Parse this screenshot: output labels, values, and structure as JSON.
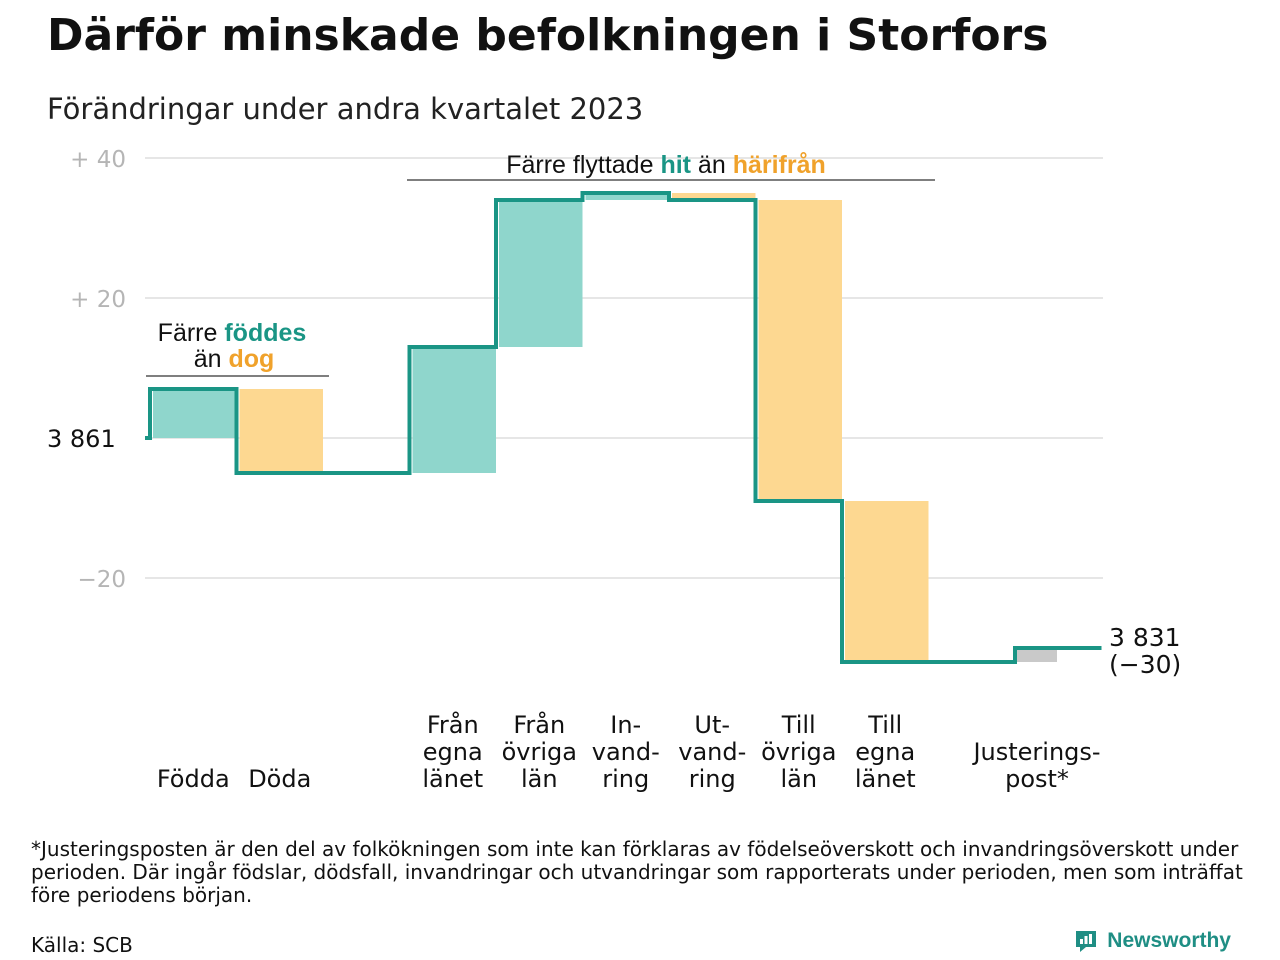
{
  "title": "Därför minskade befolkningen i Storfors",
  "subtitle": "Förändringar under andra kvartalet 2023",
  "footnote": "*Justeringsposten är den del av folkökningen som inte kan förklaras av födelseöverskott och invandringsöverskott under perioden. Där ingår födslar, dödsfall, invandringar och utvandringar som rapporterats under perioden, men som inträffat före periodens början.",
  "source": "Källa: SCB",
  "brand": "Newsworthy",
  "colors": {
    "positive": "#8fd6cc",
    "negative": "#fdd891",
    "adjustment": "#c9c9c9",
    "line": "#1a9585",
    "accent_teal": "#1a9585",
    "accent_orange": "#f0a22b",
    "grid": "#e6e6e6"
  },
  "chart_data": {
    "type": "waterfall",
    "start_value": 3861,
    "start_label": "3  861",
    "end_value": 3831,
    "end_label": "3 831",
    "change_label": "(−30)",
    "ylim": [
      -32,
      40
    ],
    "y_ticks": [
      {
        "value": 40,
        "label": "+  40"
      },
      {
        "value": 20,
        "label": "+  20"
      },
      {
        "value": 0,
        "label": ""
      },
      {
        "value": -20,
        "label": "−20"
      }
    ],
    "steps": [
      {
        "category": [
          "Födda"
        ],
        "value": 7,
        "kind": "positive"
      },
      {
        "category": [
          "Döda"
        ],
        "value": -12,
        "kind": "negative"
      },
      {
        "category": [
          "Från",
          "egna",
          "länet"
        ],
        "value": 18,
        "kind": "positive"
      },
      {
        "category": [
          "Från",
          "övriga",
          "län"
        ],
        "value": 21,
        "kind": "positive"
      },
      {
        "category": [
          "In-",
          "vand-",
          "ring"
        ],
        "value": 1,
        "kind": "positive"
      },
      {
        "category": [
          "Ut-",
          "vand-",
          "ring"
        ],
        "value": -1,
        "kind": "negative"
      },
      {
        "category": [
          "Till",
          "övriga",
          "län"
        ],
        "value": -43,
        "kind": "negative"
      },
      {
        "category": [
          "Till",
          "egna",
          "länet"
        ],
        "value": -23,
        "kind": "negative"
      },
      {
        "category": [
          "Justerings-",
          "post*"
        ],
        "value": 2,
        "kind": "adjustment"
      }
    ],
    "annotations": [
      {
        "parts": [
          {
            "text": "Färre ",
            "color": "#111111"
          },
          {
            "text": "föddes",
            "color": "#1a9585",
            "bold": true
          }
        ],
        "line2": [
          {
            "text": "än ",
            "color": "#111111"
          },
          {
            "text": "dog",
            "color": "#f0a22b",
            "bold": true
          }
        ]
      },
      {
        "parts": [
          {
            "text": "Färre flyttade ",
            "color": "#111111"
          },
          {
            "text": "hit",
            "color": "#1a9585",
            "bold": true
          },
          {
            "text": "  än ",
            "color": "#111111"
          },
          {
            "text": "härifrån",
            "color": "#f0a22b",
            "bold": true
          }
        ]
      }
    ]
  }
}
